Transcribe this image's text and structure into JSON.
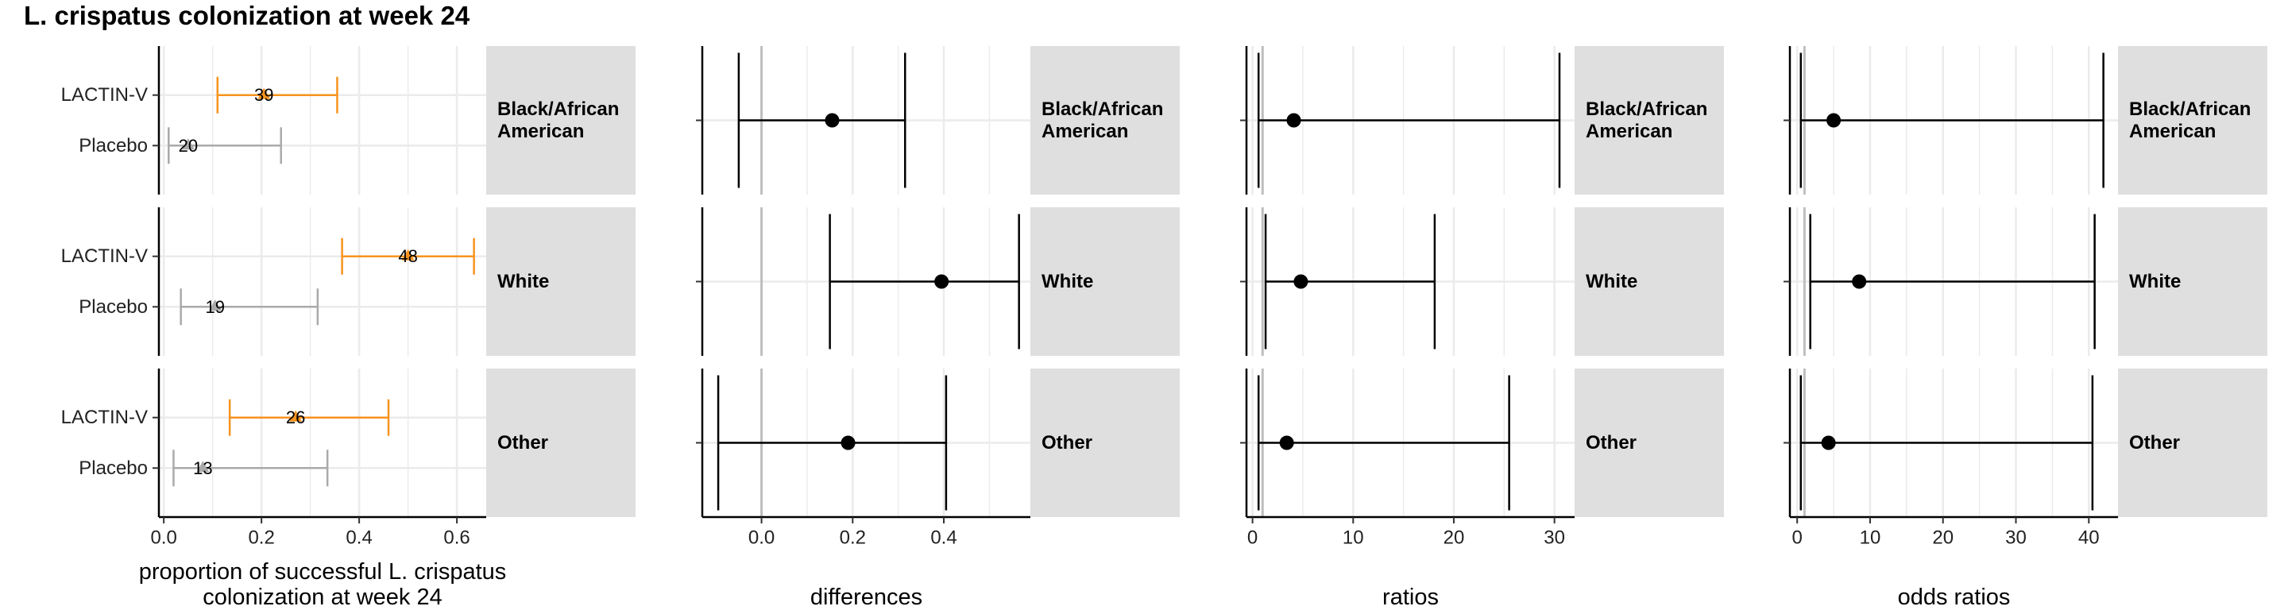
{
  "title": "L. crispatus colonization at week 24",
  "groups": [
    "Black/African American",
    "White",
    "Other"
  ],
  "arms": [
    "LACTIN-V",
    "Placebo"
  ],
  "colors": {
    "LACTIN-V": "#F7931E",
    "Placebo": "#AAAAAA",
    "effect": "#000000",
    "strip": "#DFDFDF",
    "grid": "#EBEBEB",
    "reference": "#BEBEBE"
  },
  "chart_data": [
    {
      "type": "errorbar",
      "xlabel": "proportion of successful L. crispatus colonization at week 24",
      "xlim": [
        -0.01,
        0.66
      ],
      "xticks": [
        0.0,
        0.2,
        0.4,
        0.6
      ],
      "xtick_labels": [
        "0.0",
        "0.2",
        "0.4",
        "0.6"
      ],
      "rows": [
        {
          "group": "Black/African American",
          "arm": "LACTIN-V",
          "estimate": 0.205,
          "lower": 0.11,
          "upper": 0.355,
          "label": "39"
        },
        {
          "group": "Black/African American",
          "arm": "Placebo",
          "estimate": 0.05,
          "lower": 0.01,
          "upper": 0.24,
          "label": "20"
        },
        {
          "group": "White",
          "arm": "LACTIN-V",
          "estimate": 0.5,
          "lower": 0.365,
          "upper": 0.635,
          "label": "48"
        },
        {
          "group": "White",
          "arm": "Placebo",
          "estimate": 0.105,
          "lower": 0.035,
          "upper": 0.315,
          "label": "19"
        },
        {
          "group": "Other",
          "arm": "LACTIN-V",
          "estimate": 0.27,
          "lower": 0.135,
          "upper": 0.46,
          "label": "26"
        },
        {
          "group": "Other",
          "arm": "Placebo",
          "estimate": 0.08,
          "lower": 0.02,
          "upper": 0.335,
          "label": "13"
        }
      ]
    },
    {
      "type": "errorbar",
      "xlabel": "differences",
      "reference": 0,
      "xlim": [
        -0.13,
        0.59
      ],
      "xticks": [
        0.0,
        0.2,
        0.4
      ],
      "xtick_labels": [
        "0.0",
        "0.2",
        "0.4"
      ],
      "rows": [
        {
          "group": "Black/African American",
          "estimate": 0.155,
          "lower": -0.05,
          "upper": 0.315
        },
        {
          "group": "White",
          "estimate": 0.395,
          "lower": 0.15,
          "upper": 0.565
        },
        {
          "group": "Other",
          "estimate": 0.19,
          "lower": -0.095,
          "upper": 0.405
        }
      ]
    },
    {
      "type": "errorbar",
      "xlabel": "ratios",
      "reference": 1,
      "xlim": [
        -0.6,
        32.0
      ],
      "xticks": [
        0,
        10,
        20,
        30
      ],
      "xtick_labels": [
        "0",
        "10",
        "20",
        "30"
      ],
      "rows": [
        {
          "group": "Black/African American",
          "estimate": 4.1,
          "lower": 0.6,
          "upper": 30.5
        },
        {
          "group": "White",
          "estimate": 4.8,
          "lower": 1.3,
          "upper": 18.1
        },
        {
          "group": "Other",
          "estimate": 3.4,
          "lower": 0.6,
          "upper": 25.5
        }
      ]
    },
    {
      "type": "errorbar",
      "xlabel": "odds ratios",
      "reference": 1,
      "xlim": [
        -1.0,
        44.0
      ],
      "xticks": [
        0,
        10,
        20,
        30,
        40
      ],
      "xtick_labels": [
        "0",
        "10",
        "20",
        "30",
        "40"
      ],
      "rows": [
        {
          "group": "Black/African American",
          "estimate": 5.0,
          "lower": 0.5,
          "upper": 42.0
        },
        {
          "group": "White",
          "estimate": 8.5,
          "lower": 1.8,
          "upper": 40.8
        },
        {
          "group": "Other",
          "estimate": 4.3,
          "lower": 0.5,
          "upper": 40.5
        }
      ]
    }
  ]
}
